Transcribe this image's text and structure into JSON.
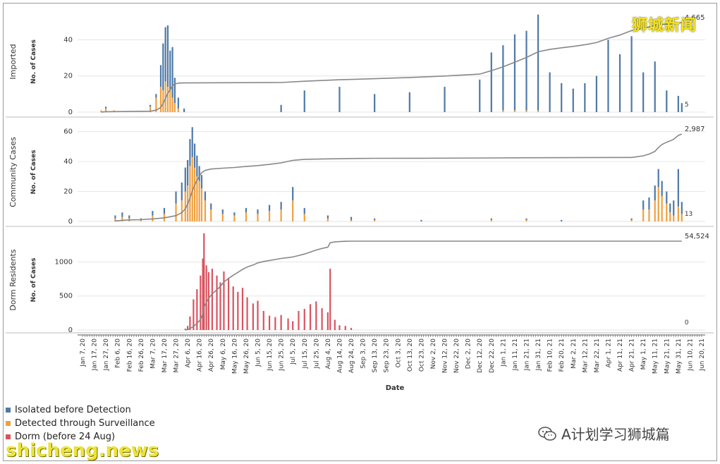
{
  "colors": {
    "isolated": "#4e79a7",
    "surveillance": "#f0a040",
    "dorm": "#d9535f",
    "cumulative": "#888888",
    "grid": "#e6e6e6",
    "axis": "#555555"
  },
  "legend": [
    {
      "label": "Isolated before Detection",
      "color_key": "isolated"
    },
    {
      "label": "Detected through Surveillance",
      "color_key": "surveillance"
    },
    {
      "label": "Dorm (before 24 Aug)",
      "color_key": "dorm"
    }
  ],
  "watermarks": {
    "cn_top": "狮城新闻",
    "site": "shicheng.news",
    "wechat": "A计划学习狮城篇"
  },
  "chart_data": {
    "type": "bar",
    "xlabel": "Date",
    "x_ticks": [
      "Jan 7, 20",
      "Jan 17, 20",
      "Jan 27, 20",
      "Feb 6, 20",
      "Feb 16, 20",
      "Feb 26, 20",
      "Mar 7, 20",
      "Mar 17, 20",
      "Mar 27, 20",
      "Apr 6, 20",
      "Apr 16, 20",
      "Apr 26, 20",
      "May 6, 20",
      "May 16, 20",
      "May 26, 20",
      "Jun 5, 20",
      "Jun 15, 20",
      "Jun 25, 20",
      "Jul 5, 20",
      "Jul 15, 20",
      "Jul 25, 20",
      "Aug 4, 20",
      "Aug 14, 20",
      "Aug 24, 20",
      "Sep 3, 20",
      "Sep 13, 20",
      "Sep 23, 20",
      "Oct 3, 20",
      "Oct 13, 20",
      "Oct 23, 20",
      "Nov 2, 20",
      "Nov 12, 20",
      "Nov 22, 20",
      "Dec 2, 20",
      "Dec 12, 20",
      "Dec 22, 20",
      "Jan 1, 21",
      "Jan 11, 21",
      "Jan 21, 21",
      "Jan 31, 21",
      "Feb 10, 21",
      "Feb 20, 21",
      "Mar 2, 21",
      "Mar 12, 21",
      "Mar 22, 21",
      "Apr 1, 21",
      "Apr 11, 21",
      "Apr 21, 21",
      "May 1, 21",
      "May 11, 21",
      "May 21, 21",
      "May 31, 21",
      "Jun 10, 21",
      "Jun 20, 21"
    ],
    "panels": [
      {
        "name": "Imported",
        "ylabel": "No. of Cases",
        "ylim": [
          0,
          55
        ],
        "yticks": [
          0,
          20,
          40
        ],
        "end_value_label": "5",
        "cumulative_label": "4,665",
        "bars": [
          {
            "date": "Jan 23, 20",
            "isolated": 0,
            "surveillance": 1
          },
          {
            "date": "Jan 27, 20",
            "isolated": 1,
            "surveillance": 2
          },
          {
            "date": "Feb 3, 20",
            "isolated": 0,
            "surveillance": 1
          },
          {
            "date": "Mar 5, 20",
            "isolated": 1,
            "surveillance": 3
          },
          {
            "date": "Mar 10, 20",
            "isolated": 2,
            "surveillance": 8
          },
          {
            "date": "Mar 14, 20",
            "isolated": 12,
            "surveillance": 14
          },
          {
            "date": "Mar 16, 20",
            "isolated": 26,
            "surveillance": 12
          },
          {
            "date": "Mar 18, 20",
            "isolated": 30,
            "surveillance": 17
          },
          {
            "date": "Mar 20, 20",
            "isolated": 34,
            "surveillance": 14
          },
          {
            "date": "Mar 22, 20",
            "isolated": 22,
            "surveillance": 12
          },
          {
            "date": "Mar 24, 20",
            "isolated": 28,
            "surveillance": 8
          },
          {
            "date": "Mar 26, 20",
            "isolated": 14,
            "surveillance": 5
          },
          {
            "date": "Mar 29, 20",
            "isolated": 6,
            "surveillance": 2
          },
          {
            "date": "Apr 3, 20",
            "isolated": 2,
            "surveillance": 0
          },
          {
            "date": "Jun 25, 20",
            "isolated": 4,
            "surveillance": 0
          },
          {
            "date": "Jul 15, 20",
            "isolated": 12,
            "surveillance": 0
          },
          {
            "date": "Aug 14, 20",
            "isolated": 14,
            "surveillance": 0
          },
          {
            "date": "Sep 13, 20",
            "isolated": 10,
            "surveillance": 0
          },
          {
            "date": "Oct 13, 20",
            "isolated": 11,
            "surveillance": 0
          },
          {
            "date": "Nov 12, 20",
            "isolated": 14,
            "surveillance": 0
          },
          {
            "date": "Dec 12, 20",
            "isolated": 18,
            "surveillance": 0
          },
          {
            "date": "Dec 22, 20",
            "isolated": 33,
            "surveillance": 0
          },
          {
            "date": "Jan 1, 21",
            "isolated": 36,
            "surveillance": 1
          },
          {
            "date": "Jan 11, 21",
            "isolated": 42,
            "surveillance": 1
          },
          {
            "date": "Jan 21, 21",
            "isolated": 44,
            "surveillance": 1
          },
          {
            "date": "Jan 31, 21",
            "isolated": 53,
            "surveillance": 1
          },
          {
            "date": "Feb 10, 21",
            "isolated": 22,
            "surveillance": 0
          },
          {
            "date": "Feb 20, 21",
            "isolated": 16,
            "surveillance": 0
          },
          {
            "date": "Mar 2, 21",
            "isolated": 13,
            "surveillance": 0
          },
          {
            "date": "Mar 12, 21",
            "isolated": 16,
            "surveillance": 0
          },
          {
            "date": "Mar 22, 21",
            "isolated": 20,
            "surveillance": 0
          },
          {
            "date": "Apr 1, 21",
            "isolated": 40,
            "surveillance": 0
          },
          {
            "date": "Apr 11, 21",
            "isolated": 32,
            "surveillance": 0
          },
          {
            "date": "Apr 21, 21",
            "isolated": 42,
            "surveillance": 0
          },
          {
            "date": "May 1, 21",
            "isolated": 22,
            "surveillance": 0
          },
          {
            "date": "May 11, 21",
            "isolated": 28,
            "surveillance": 0
          },
          {
            "date": "May 21, 21",
            "isolated": 12,
            "surveillance": 0
          },
          {
            "date": "May 31, 21",
            "isolated": 9,
            "surveillance": 0
          },
          {
            "date": "Jun 3, 21",
            "isolated": 5,
            "surveillance": 0
          }
        ]
      },
      {
        "name": "Community Cases",
        "ylabel": "No. of Cases",
        "ylim": [
          0,
          65
        ],
        "yticks": [
          0,
          20,
          40,
          60
        ],
        "end_value_label": "13",
        "cumulative_label": "2,987",
        "bars": [
          {
            "date": "Feb 4, 20",
            "isolated": 2,
            "surveillance": 2
          },
          {
            "date": "Feb 10, 20",
            "isolated": 3,
            "surveillance": 3
          },
          {
            "date": "Feb 16, 20",
            "isolated": 2,
            "surveillance": 2
          },
          {
            "date": "Feb 26, 20",
            "isolated": 1,
            "surveillance": 1
          },
          {
            "date": "Mar 7, 20",
            "isolated": 3,
            "surveillance": 4
          },
          {
            "date": "Mar 17, 20",
            "isolated": 4,
            "surveillance": 5
          },
          {
            "date": "Mar 27, 20",
            "isolated": 8,
            "surveillance": 12
          },
          {
            "date": "Apr 1, 20",
            "isolated": 12,
            "surveillance": 14
          },
          {
            "date": "Apr 4, 20",
            "isolated": 16,
            "surveillance": 20
          },
          {
            "date": "Apr 6, 20",
            "isolated": 17,
            "surveillance": 24
          },
          {
            "date": "Apr 8, 20",
            "isolated": 18,
            "surveillance": 37
          },
          {
            "date": "Apr 10, 20",
            "isolated": 20,
            "surveillance": 43
          },
          {
            "date": "Apr 12, 20",
            "isolated": 16,
            "surveillance": 36
          },
          {
            "date": "Apr 14, 20",
            "isolated": 14,
            "surveillance": 30
          },
          {
            "date": "Apr 16, 20",
            "isolated": 10,
            "surveillance": 27
          },
          {
            "date": "Apr 18, 20",
            "isolated": 9,
            "surveillance": 22
          },
          {
            "date": "Apr 21, 20",
            "isolated": 6,
            "surveillance": 14
          },
          {
            "date": "Apr 26, 20",
            "isolated": 4,
            "surveillance": 8
          },
          {
            "date": "May 6, 20",
            "isolated": 3,
            "surveillance": 5
          },
          {
            "date": "May 16, 20",
            "isolated": 2,
            "surveillance": 4
          },
          {
            "date": "May 26, 20",
            "isolated": 3,
            "surveillance": 6
          },
          {
            "date": "Jun 5, 20",
            "isolated": 3,
            "surveillance": 5
          },
          {
            "date": "Jun 15, 20",
            "isolated": 4,
            "surveillance": 7
          },
          {
            "date": "Jun 25, 20",
            "isolated": 5,
            "surveillance": 8
          },
          {
            "date": "Jul 5, 20",
            "isolated": 9,
            "surveillance": 14
          },
          {
            "date": "Jul 15, 20",
            "isolated": 4,
            "surveillance": 5
          },
          {
            "date": "Aug 4, 20",
            "isolated": 2,
            "surveillance": 2
          },
          {
            "date": "Aug 24, 20",
            "isolated": 2,
            "surveillance": 1
          },
          {
            "date": "Sep 13, 20",
            "isolated": 1,
            "surveillance": 1
          },
          {
            "date": "Oct 23, 20",
            "isolated": 1,
            "surveillance": 0
          },
          {
            "date": "Dec 22, 20",
            "isolated": 1,
            "surveillance": 1
          },
          {
            "date": "Jan 21, 21",
            "isolated": 1,
            "surveillance": 1
          },
          {
            "date": "Feb 20, 21",
            "isolated": 1,
            "surveillance": 0
          },
          {
            "date": "Apr 21, 21",
            "isolated": 1,
            "surveillance": 1
          },
          {
            "date": "May 1, 21",
            "isolated": 6,
            "surveillance": 8
          },
          {
            "date": "May 6, 21",
            "isolated": 8,
            "surveillance": 8
          },
          {
            "date": "May 11, 21",
            "isolated": 10,
            "surveillance": 14
          },
          {
            "date": "May 14, 21",
            "isolated": 12,
            "surveillance": 23
          },
          {
            "date": "May 17, 21",
            "isolated": 10,
            "surveillance": 17
          },
          {
            "date": "May 21, 21",
            "isolated": 8,
            "surveillance": 12
          },
          {
            "date": "May 24, 21",
            "isolated": 6,
            "surveillance": 6
          },
          {
            "date": "May 27, 21",
            "isolated": 10,
            "surveillance": 4
          },
          {
            "date": "May 31, 21",
            "isolated": 25,
            "surveillance": 10
          },
          {
            "date": "Jun 3, 21",
            "isolated": 8,
            "surveillance": 5
          }
        ]
      },
      {
        "name": "Dorm Residents",
        "ylabel": "No. of Cases",
        "ylim": [
          0,
          1450
        ],
        "yticks": [
          0,
          500,
          1000
        ],
        "end_value_label": "0",
        "cumulative_label": "54,524",
        "bars": [
          {
            "date": "Apr 4, 20",
            "dorm": 20
          },
          {
            "date": "Apr 6, 20",
            "dorm": 60
          },
          {
            "date": "Apr 8, 20",
            "dorm": 200
          },
          {
            "date": "Apr 11, 20",
            "dorm": 450
          },
          {
            "date": "Apr 14, 20",
            "dorm": 600
          },
          {
            "date": "Apr 17, 20",
            "dorm": 800
          },
          {
            "date": "Apr 19, 20",
            "dorm": 1050
          },
          {
            "date": "Apr 20, 20",
            "dorm": 1420
          },
          {
            "date": "Apr 22, 20",
            "dorm": 950
          },
          {
            "date": "Apr 24, 20",
            "dorm": 850
          },
          {
            "date": "Apr 27, 20",
            "dorm": 900
          },
          {
            "date": "May 1, 20",
            "dorm": 800
          },
          {
            "date": "May 4, 20",
            "dorm": 700
          },
          {
            "date": "May 7, 20",
            "dorm": 860
          },
          {
            "date": "May 11, 20",
            "dorm": 750
          },
          {
            "date": "May 15, 20",
            "dorm": 640
          },
          {
            "date": "May 19, 20",
            "dorm": 560
          },
          {
            "date": "May 23, 20",
            "dorm": 620
          },
          {
            "date": "May 27, 20",
            "dorm": 480
          },
          {
            "date": "Jun 1, 20",
            "dorm": 390
          },
          {
            "date": "Jun 5, 20",
            "dorm": 430
          },
          {
            "date": "Jun 10, 20",
            "dorm": 280
          },
          {
            "date": "Jun 15, 20",
            "dorm": 210
          },
          {
            "date": "Jun 20, 20",
            "dorm": 190
          },
          {
            "date": "Jun 25, 20",
            "dorm": 220
          },
          {
            "date": "Jul 1, 20",
            "dorm": 170
          },
          {
            "date": "Jul 5, 20",
            "dorm": 130
          },
          {
            "date": "Jul 10, 20",
            "dorm": 280
          },
          {
            "date": "Jul 15, 20",
            "dorm": 310
          },
          {
            "date": "Jul 20, 20",
            "dorm": 380
          },
          {
            "date": "Jul 25, 20",
            "dorm": 420
          },
          {
            "date": "Jul 30, 20",
            "dorm": 320
          },
          {
            "date": "Aug 4, 20",
            "dorm": 260
          },
          {
            "date": "Aug 6, 20",
            "dorm": 900
          },
          {
            "date": "Aug 10, 20",
            "dorm": 150
          },
          {
            "date": "Aug 14, 20",
            "dorm": 70
          },
          {
            "date": "Aug 19, 20",
            "dorm": 60
          },
          {
            "date": "Aug 24, 20",
            "dorm": 30
          }
        ]
      }
    ]
  }
}
